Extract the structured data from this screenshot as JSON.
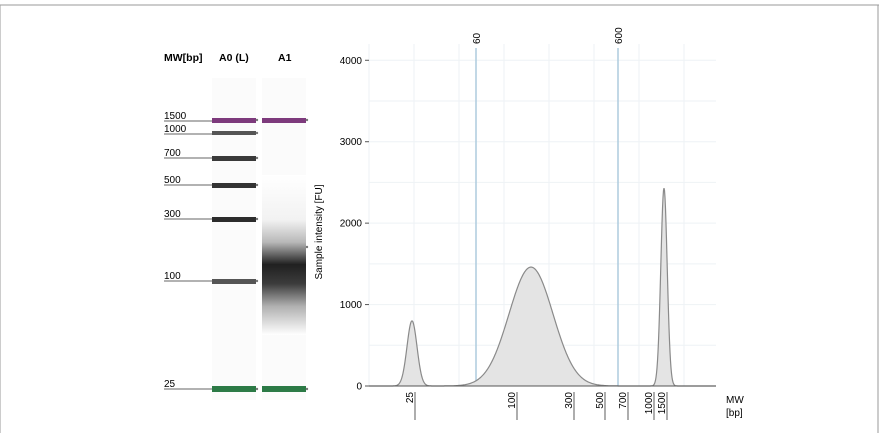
{
  "gel": {
    "header_mw": "MW[bp]",
    "header_ladder": "A0 (L)",
    "header_sample": "A1",
    "ladder_labels": [
      "1500",
      "1000",
      "700",
      "500",
      "300",
      "100",
      "25"
    ]
  },
  "chart_data": {
    "type": "area",
    "ylabel": "Sample intensity [FU]",
    "xlabel": [
      "MW",
      "[bp]"
    ],
    "yticks": [
      0,
      1000,
      2000,
      3000,
      4000
    ],
    "ylim": [
      0,
      4200
    ],
    "xticks": [
      "25",
      "100",
      "300",
      "500",
      "700",
      "1000",
      "1500"
    ],
    "markers": [
      {
        "label": "60"
      },
      {
        "label": "600"
      }
    ],
    "peaks": [
      {
        "label": "25",
        "height": 800
      },
      {
        "label": "~200",
        "height": 1460
      },
      {
        "label": "1500",
        "height": 2430
      }
    ],
    "colors": {
      "fill": "#e4e4e4",
      "line": "#8a8a8a",
      "marker": "#a8c8dc",
      "upper_marker_band": "#7d3a7c",
      "lower_marker_band": "#2c7a46"
    }
  }
}
